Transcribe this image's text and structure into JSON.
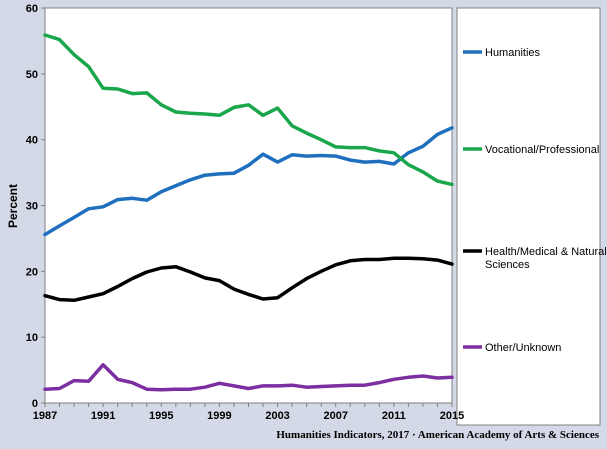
{
  "credit": "Humanities Indicators, 2017 · American Academy of Arts & Sciences",
  "chart_data": {
    "type": "line",
    "title": "",
    "xlabel": "",
    "ylabel": "Percent",
    "xlim": [
      1987,
      2015
    ],
    "ylim": [
      0,
      60
    ],
    "x_ticks": [
      "1987",
      "1991",
      "1995",
      "1999",
      "2003",
      "2007",
      "2011",
      "2015"
    ],
    "y_ticks": [
      "0",
      "10",
      "20",
      "30",
      "40",
      "50",
      "60"
    ],
    "grid": false,
    "legend_position": "right",
    "x": [
      1987,
      1988,
      1989,
      1990,
      1991,
      1992,
      1993,
      1994,
      1995,
      1996,
      1997,
      1998,
      1999,
      2000,
      2001,
      2002,
      2003,
      2004,
      2005,
      2006,
      2007,
      2008,
      2009,
      2010,
      2011,
      2012,
      2013,
      2014,
      2015
    ],
    "series": [
      {
        "name": "Humanities",
        "color": "#1f6fbf",
        "values": [
          25.6,
          26.9,
          28.2,
          29.5,
          29.8,
          30.9,
          31.1,
          30.8,
          32.1,
          33.0,
          33.9,
          34.6,
          34.8,
          34.9,
          36.1,
          37.8,
          36.6,
          37.7,
          37.5,
          37.6,
          37.5,
          36.9,
          36.6,
          36.7,
          36.3,
          38.0,
          39.0,
          40.8,
          41.8
        ]
      },
      {
        "name": "Vocational/Professional",
        "color": "#1aa64a",
        "values": [
          55.9,
          55.2,
          52.9,
          51.1,
          47.8,
          47.7,
          47.0,
          47.1,
          45.3,
          44.2,
          44.0,
          43.9,
          43.7,
          44.9,
          45.3,
          43.7,
          44.8,
          42.1,
          41.0,
          40.0,
          38.9,
          38.8,
          38.8,
          38.3,
          38.0,
          36.2,
          35.1,
          33.7,
          33.2
        ]
      },
      {
        "name": "Health/Medical & Natural Sciences",
        "color": "#000000",
        "values": [
          16.3,
          15.7,
          15.6,
          16.1,
          16.6,
          17.7,
          18.9,
          19.9,
          20.5,
          20.7,
          19.9,
          19.0,
          18.6,
          17.3,
          16.5,
          15.8,
          16.0,
          17.5,
          18.9,
          20.0,
          21.0,
          21.6,
          21.8,
          21.8,
          22.0,
          22.0,
          21.9,
          21.7,
          21.1
        ]
      },
      {
        "name": "Other/Unknown",
        "color": "#7b2fa0",
        "values": [
          2.1,
          2.2,
          3.4,
          3.3,
          5.8,
          3.6,
          3.1,
          2.1,
          2.0,
          2.1,
          2.1,
          2.4,
          3.0,
          2.6,
          2.2,
          2.6,
          2.6,
          2.7,
          2.4,
          2.5,
          2.6,
          2.7,
          2.7,
          3.1,
          3.6,
          3.9,
          4.1,
          3.8,
          3.9
        ]
      }
    ],
    "legend": [
      {
        "lines": [
          "Humanities"
        ]
      },
      {
        "lines": [
          "Vocational/Professional"
        ]
      },
      {
        "lines": [
          "Health/Medical & Natural",
          "Sciences"
        ]
      },
      {
        "lines": [
          "Other/Unknown"
        ]
      }
    ]
  }
}
